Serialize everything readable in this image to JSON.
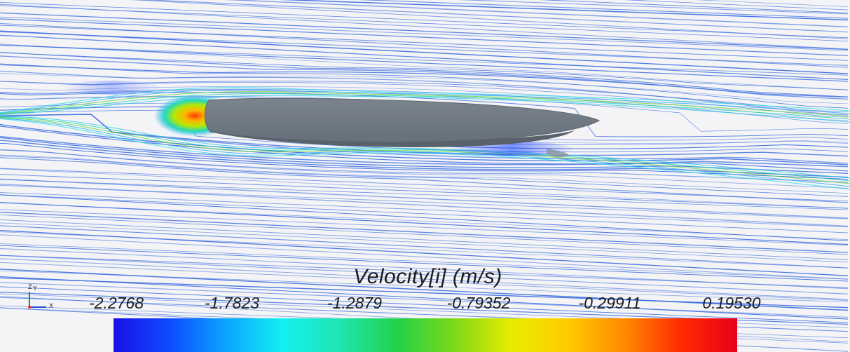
{
  "legend": {
    "title": "Velocity[i] (m/s)",
    "ticks": [
      "-2.2768",
      "-1.7823",
      "-1.2879",
      "-0.79352",
      "-0.29911",
      "0.19530"
    ],
    "colormap": [
      "#1a10e6",
      "#0f4cff",
      "#0aa6ff",
      "#14f0f0",
      "#1fe5b0",
      "#22d24a",
      "#7ad818",
      "#e8ec00",
      "#ffcc00",
      "#ff8a00",
      "#ff2a00",
      "#e8001a"
    ]
  },
  "axes_triad": {
    "z_label": "Z",
    "y_label": "Y",
    "x_label": "X"
  },
  "colors": {
    "streamline": "#3d6fe0",
    "background": "#f4f4f6",
    "hull": "#6f7881"
  }
}
